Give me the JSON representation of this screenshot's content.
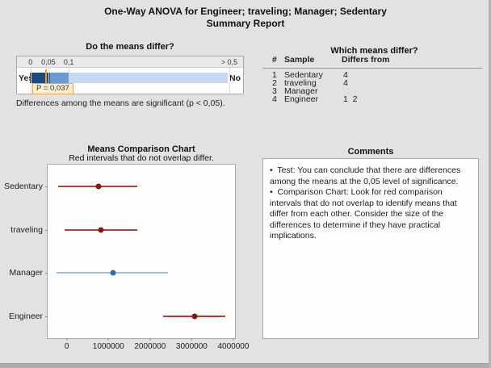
{
  "title": {
    "line1": "One-Way ANOVA for Engineer; traveling; Manager; Sedentary",
    "line2": "Summary Report"
  },
  "colors": {
    "bar_dark": "#1b4a80",
    "bar_mid": "#6e9ad3",
    "bar_light": "#c7d9f2",
    "marker_orange": "#eb9b3f",
    "red_line": "#b03f3a",
    "red_dot": "#8a170e",
    "blue_line": "#9dc3e8",
    "blue_dot": "#2b6cb3"
  },
  "p_panel": {
    "heading": "Do the means differ?",
    "yes_label": "Yes",
    "no_label": "No",
    "p_value": "0,037",
    "p_label": "P = 0,037",
    "marker_pos_pct": 7.8,
    "ticks": [
      {
        "label": "0",
        "pos_pct": 6.0
      },
      {
        "label": "0,05",
        "pos_pct": 13.9
      },
      {
        "label": "0,1",
        "pos_pct": 22.9
      },
      {
        "label": "> 0,5",
        "pos_pct": 93.9
      }
    ],
    "segments": [
      {
        "name": "significant",
        "width_pct": 10.3,
        "color": "#1b4a80"
      },
      {
        "name": "marginal",
        "width_pct": 9.5,
        "color": "#6e9ad3"
      },
      {
        "name": "not-significant",
        "width_pct": 80.2,
        "color": "#c7d9f2"
      }
    ],
    "caption": "Differences among the means are significant (p < 0,05)."
  },
  "table": {
    "heading": "Which means differ?",
    "columns": [
      "#",
      "Sample",
      "Differs from"
    ],
    "rows": [
      {
        "num": "1",
        "sample": "Sedentary",
        "differs": "4"
      },
      {
        "num": "2",
        "sample": "traveling",
        "differs": "4"
      },
      {
        "num": "3",
        "sample": "Manager",
        "differs": ""
      },
      {
        "num": "4",
        "sample": "Engineer",
        "differs": "1  2"
      }
    ]
  },
  "chart": {
    "heading": "Means Comparison Chart",
    "subheading": "Red intervals that do not overlap differ."
  },
  "chart_data": {
    "type": "interval",
    "title": "Means Comparison Chart",
    "subtitle": "Red intervals that do not overlap differ.",
    "categories": [
      "Sedentary",
      "traveling",
      "Manager",
      "Engineer"
    ],
    "series": [
      {
        "name": "Sedentary",
        "low": -200000,
        "center": 760000,
        "high": 1700000,
        "color": "red"
      },
      {
        "name": "traveling",
        "low": -60000,
        "center": 820000,
        "high": 1700000,
        "color": "red"
      },
      {
        "name": "Manager",
        "low": -250000,
        "center": 1120000,
        "high": 2430000,
        "color": "blue"
      },
      {
        "name": "Engineer",
        "low": 2310000,
        "center": 3070000,
        "high": 3810000,
        "color": "red"
      }
    ],
    "xticks": [
      0,
      1000000,
      2000000,
      3000000,
      4000000
    ],
    "xtick_labels": [
      "0",
      "1000000",
      "2000000",
      "3000000",
      "4000000"
    ],
    "xlim": [
      -460000,
      4040000
    ],
    "grid": false,
    "legend": false
  },
  "comments": {
    "heading": "Comments",
    "items": [
      "Test: You can conclude that there are differences among the means at the 0,05 level of significance.",
      "Comparison Chart: Look for red comparison intervals that do not overlap to identify means that differ from each other. Consider the size of the differences to determine if they have practical implications."
    ]
  }
}
